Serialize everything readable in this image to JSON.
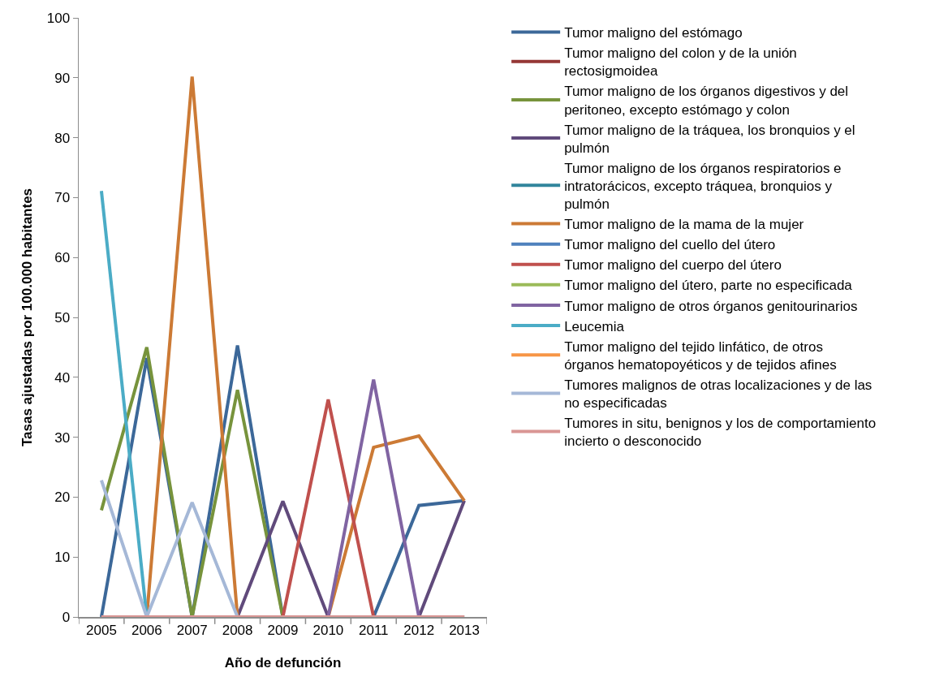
{
  "chart_data": {
    "type": "line",
    "xlabel": "Año de defunción",
    "ylabel": "Tasas ajustadas por 100.000 habitantes",
    "categories": [
      "2005",
      "2006",
      "2007",
      "2008",
      "2009",
      "2010",
      "2011",
      "2012",
      "2013"
    ],
    "ylim": [
      0,
      100
    ],
    "yticks": [
      0,
      10,
      20,
      30,
      40,
      50,
      60,
      70,
      80,
      90,
      100
    ],
    "grid": false,
    "legend": "right",
    "marker": "none",
    "line_style": "solid",
    "series": [
      {
        "name": "Tumor maligno del estómago",
        "color": "#3c6899",
        "values": [
          0,
          43.2,
          0,
          45.3,
          0,
          0,
          0,
          18.6,
          19.4
        ]
      },
      {
        "name": "Tumor maligno del colon y de la unión rectosigmoidea",
        "color": "#953735",
        "values": [
          null,
          null,
          null,
          null,
          null,
          null,
          null,
          null,
          null
        ]
      },
      {
        "name": "Tumor maligno de los órganos digestivos y del peritoneo, excepto estómago y colon",
        "color": "#77933c",
        "values": [
          17.8,
          45,
          0,
          37.9,
          0,
          0,
          0,
          0,
          0
        ]
      },
      {
        "name": "Tumor maligno de la tráquea, los bronquios y el pulmón",
        "color": "#604a7b",
        "values": [
          0,
          0,
          0,
          0,
          19.3,
          0,
          0,
          0,
          19.4
        ]
      },
      {
        "name": "Tumor maligno de los órganos respiratorios e intratorácicos, excepto tráquea, bronquios y pulmón",
        "color": "#31859c",
        "values": [
          null,
          null,
          null,
          null,
          null,
          null,
          null,
          null,
          null
        ]
      },
      {
        "name": "Tumor maligno de la mama de la mujer",
        "color": "#cc7a35",
        "values": [
          0,
          0,
          90.2,
          0,
          0,
          0,
          28.3,
          30.2,
          19.4
        ]
      },
      {
        "name": "Tumor maligno del cuello del útero",
        "color": "#4f81bd",
        "values": [
          null,
          null,
          null,
          null,
          null,
          null,
          null,
          null,
          null
        ]
      },
      {
        "name": "Tumor maligno del cuerpo del útero",
        "color": "#c0504d",
        "values": [
          0,
          0,
          0,
          0,
          0,
          36.3,
          0,
          0,
          0
        ]
      },
      {
        "name": "Tumor maligno del útero, parte no especificada",
        "color": "#9bbb59",
        "values": [
          null,
          null,
          null,
          null,
          null,
          null,
          null,
          null,
          null
        ]
      },
      {
        "name": "Tumor maligno de otros órganos genitourinarios",
        "color": "#8064a2",
        "values": [
          0,
          0,
          0,
          0,
          0,
          0,
          39.6,
          0,
          0
        ]
      },
      {
        "name": "Leucemia",
        "color": "#4bacc6",
        "values": [
          71.1,
          0,
          null,
          null,
          null,
          null,
          null,
          null,
          null
        ]
      },
      {
        "name": "Tumor maligno del tejido linfático, de otros órganos hematopoyéticos y de tejidos afines",
        "color": "#f79646",
        "values": [
          null,
          null,
          null,
          null,
          null,
          null,
          null,
          null,
          null
        ]
      },
      {
        "name": "Tumores malignos de otras localizaciones y de las no especificadas",
        "color": "#a5b8d7",
        "values": [
          22.8,
          0,
          19.1,
          0,
          0,
          0,
          0,
          0,
          0
        ]
      },
      {
        "name": "Tumores in situ, benignos y los de comportamiento incierto o desconocido",
        "color": "#d99694",
        "values": [
          0,
          0,
          0,
          0,
          0,
          0,
          0,
          0,
          0
        ]
      }
    ]
  }
}
